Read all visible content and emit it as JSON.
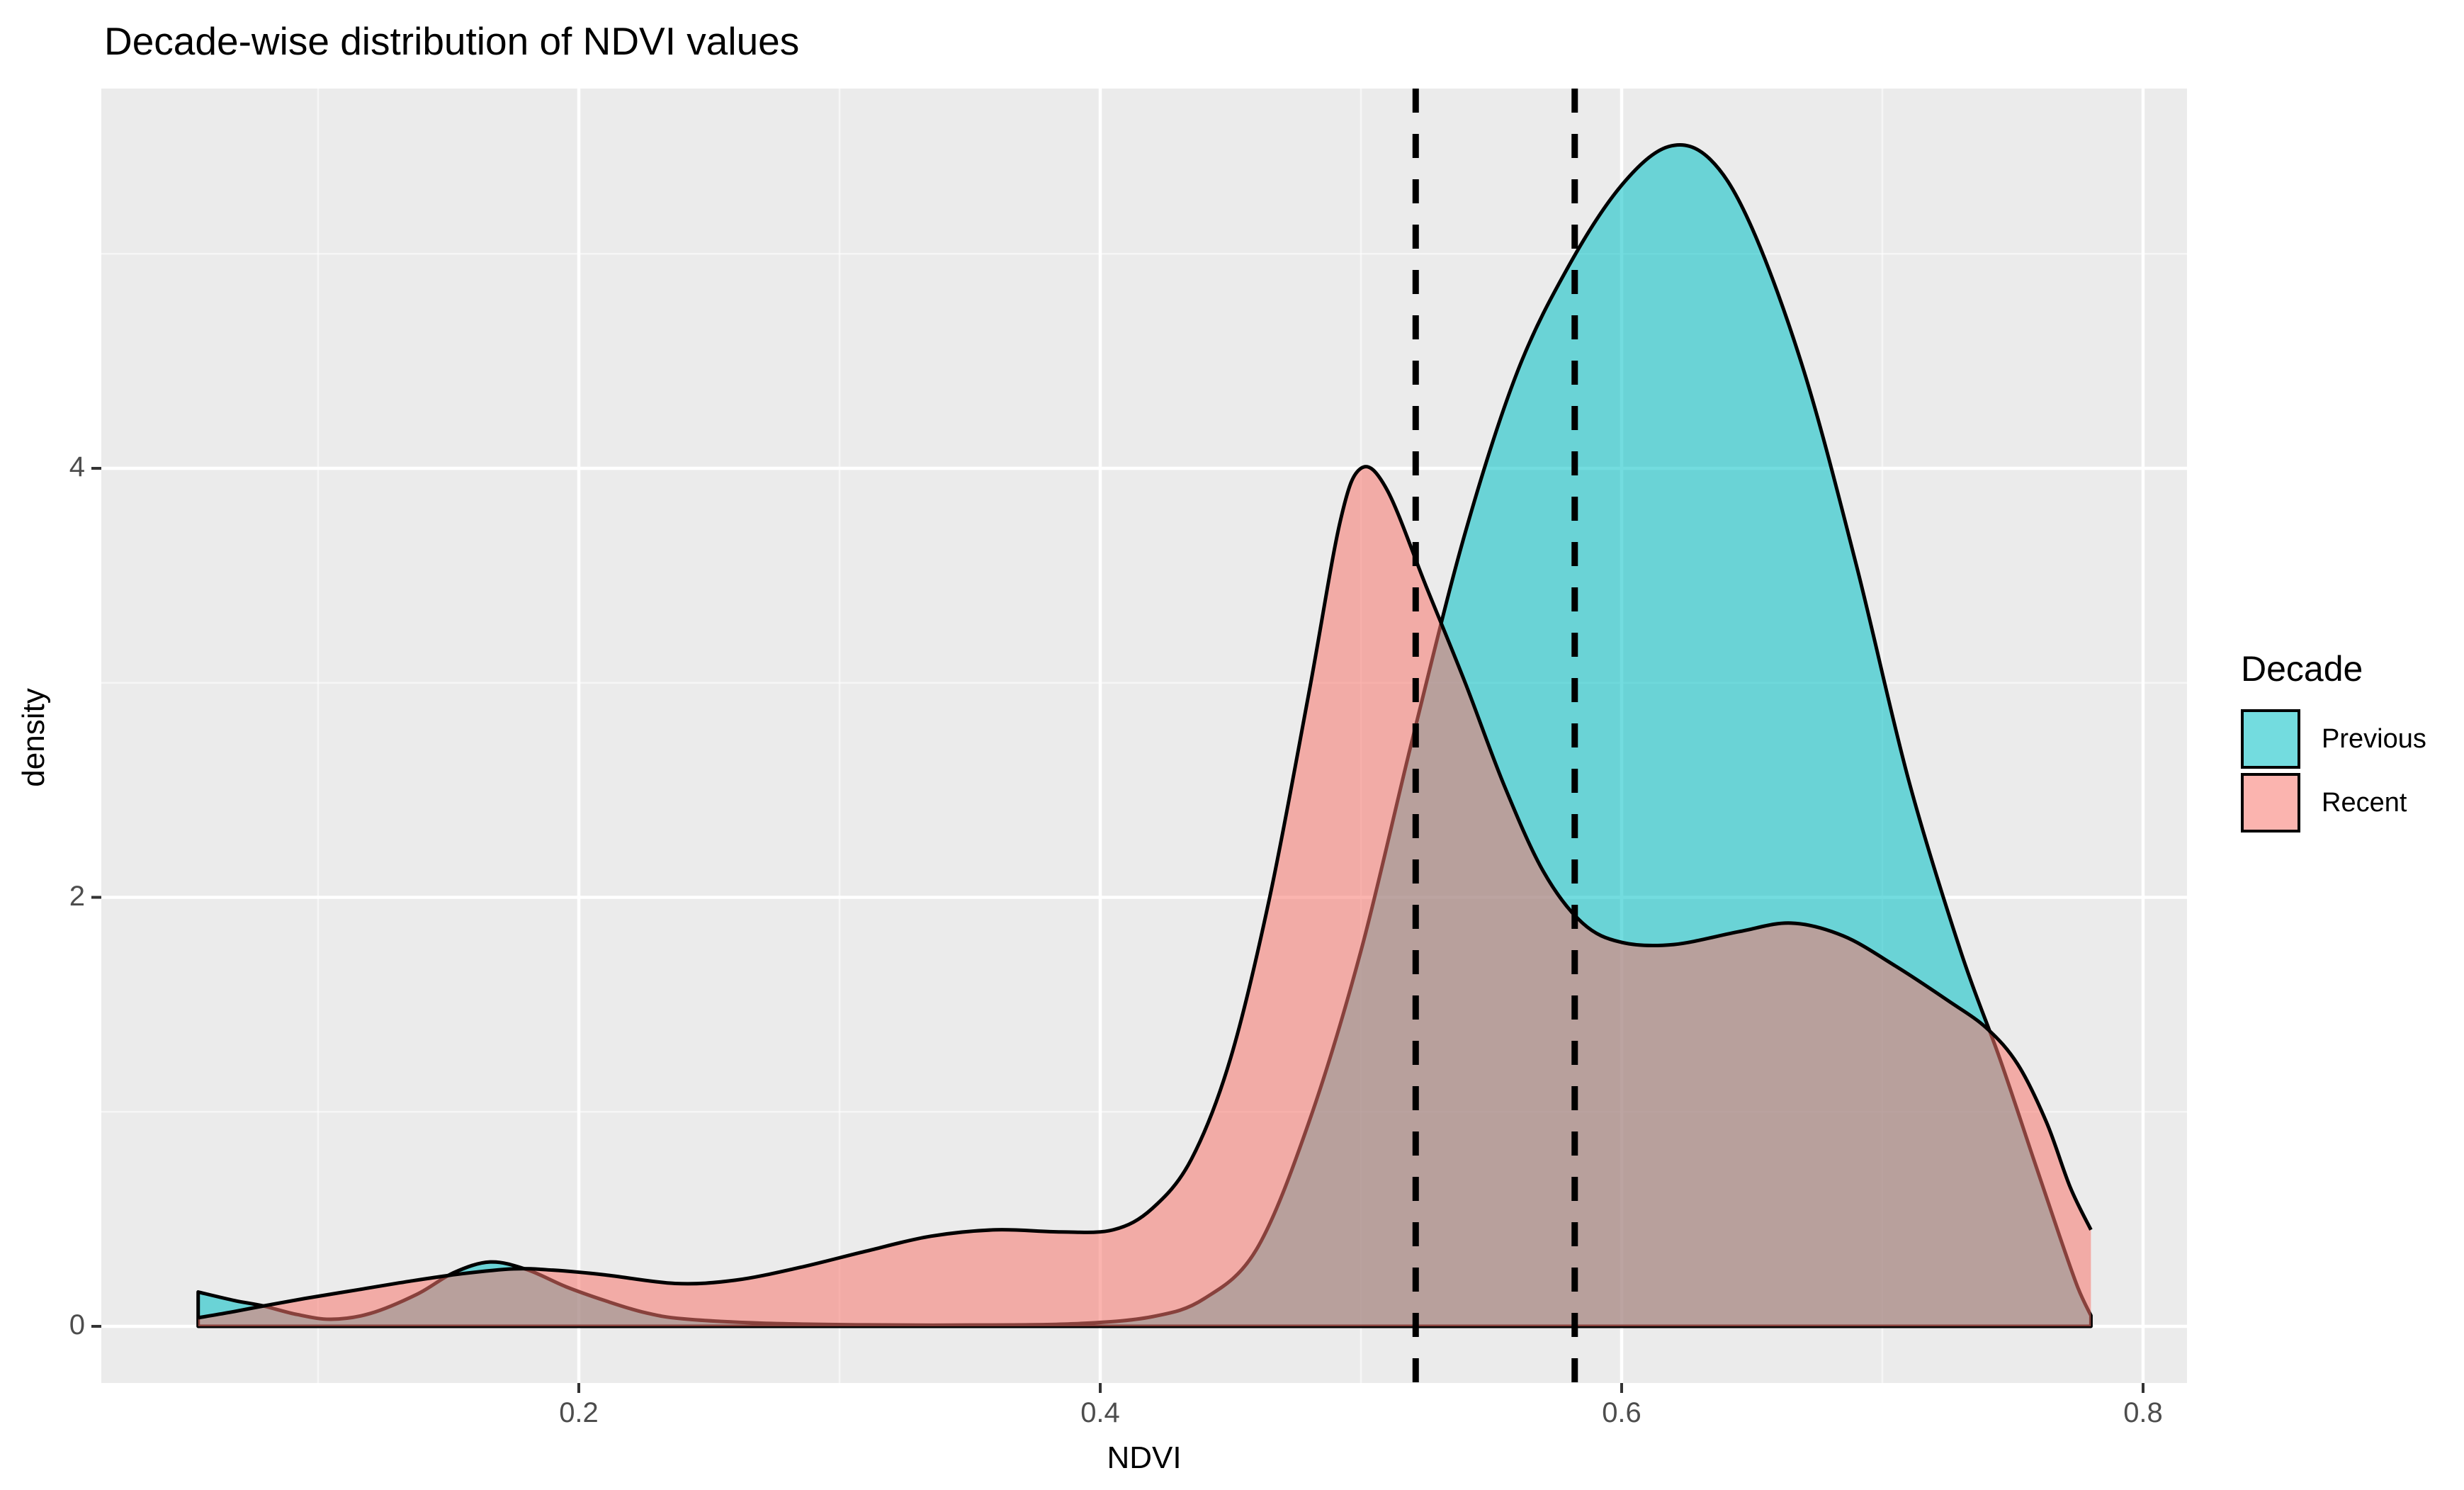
{
  "page": {
    "background": "#FFFFFF"
  },
  "chart_data": {
    "type": "area",
    "subtype": "density",
    "title": "Decade-wise distribution of NDVI values",
    "xlabel": "NDVI",
    "ylabel": "density",
    "x_ticks": [
      0.2,
      0.4,
      0.6,
      0.8
    ],
    "x_tick_labels": [
      "0.2",
      "0.4",
      "0.6",
      "0.8"
    ],
    "x_minor_ticks": [
      0.1,
      0.3,
      0.5,
      0.7
    ],
    "y_ticks": [
      0,
      2,
      4
    ],
    "y_tick_labels": [
      "0",
      "2",
      "4"
    ],
    "y_minor_ticks": [
      1,
      3,
      5
    ],
    "xlim": [
      0.017,
      0.817
    ],
    "ylim": [
      -0.26,
      5.77
    ],
    "grid": true,
    "panel_background": "#EBEBEB",
    "gridline_color": "#FFFFFF",
    "outline_color": "#000000",
    "fill_alpha": 0.55,
    "legend": {
      "position": "right",
      "title": "Decade",
      "entries": [
        {
          "label": "Previous",
          "color": "#00BFC4"
        },
        {
          "label": "Recent",
          "color": "#F8766D"
        }
      ]
    },
    "vlines": [
      {
        "x": 0.521,
        "style": "dashed",
        "color": "#000000"
      },
      {
        "x": 0.582,
        "style": "dashed",
        "color": "#000000"
      }
    ],
    "series": [
      {
        "name": "Previous",
        "color": "#00BFC4",
        "points": [
          [
            0.054,
            0.16
          ],
          [
            0.068,
            0.12
          ],
          [
            0.079,
            0.095
          ],
          [
            0.092,
            0.055
          ],
          [
            0.105,
            0.033
          ],
          [
            0.12,
            0.06
          ],
          [
            0.138,
            0.15
          ],
          [
            0.152,
            0.25
          ],
          [
            0.166,
            0.3
          ],
          [
            0.18,
            0.265
          ],
          [
            0.195,
            0.185
          ],
          [
            0.21,
            0.12
          ],
          [
            0.225,
            0.065
          ],
          [
            0.24,
            0.035
          ],
          [
            0.27,
            0.015
          ],
          [
            0.31,
            0.007
          ],
          [
            0.35,
            0.006
          ],
          [
            0.39,
            0.012
          ],
          [
            0.42,
            0.045
          ],
          [
            0.44,
            0.13
          ],
          [
            0.46,
            0.36
          ],
          [
            0.48,
            0.95
          ],
          [
            0.5,
            1.75
          ],
          [
            0.52,
            2.75
          ],
          [
            0.54,
            3.7
          ],
          [
            0.56,
            4.45
          ],
          [
            0.58,
            4.95
          ],
          [
            0.6,
            5.32
          ],
          [
            0.618,
            5.5
          ],
          [
            0.634,
            5.44
          ],
          [
            0.65,
            5.12
          ],
          [
            0.67,
            4.45
          ],
          [
            0.69,
            3.55
          ],
          [
            0.71,
            2.55
          ],
          [
            0.73,
            1.75
          ],
          [
            0.745,
            1.25
          ],
          [
            0.758,
            0.78
          ],
          [
            0.768,
            0.42
          ],
          [
            0.775,
            0.18
          ],
          [
            0.78,
            0.05
          ]
        ]
      },
      {
        "name": "Recent",
        "color": "#F8766D",
        "points": [
          [
            0.054,
            0.04
          ],
          [
            0.066,
            0.065
          ],
          [
            0.079,
            0.095
          ],
          [
            0.095,
            0.13
          ],
          [
            0.115,
            0.17
          ],
          [
            0.135,
            0.21
          ],
          [
            0.155,
            0.245
          ],
          [
            0.175,
            0.268
          ],
          [
            0.19,
            0.262
          ],
          [
            0.21,
            0.24
          ],
          [
            0.237,
            0.2
          ],
          [
            0.26,
            0.215
          ],
          [
            0.285,
            0.275
          ],
          [
            0.31,
            0.35
          ],
          [
            0.335,
            0.42
          ],
          [
            0.36,
            0.45
          ],
          [
            0.385,
            0.44
          ],
          [
            0.405,
            0.45
          ],
          [
            0.42,
            0.55
          ],
          [
            0.435,
            0.78
          ],
          [
            0.45,
            1.25
          ],
          [
            0.465,
            2.0
          ],
          [
            0.48,
            2.95
          ],
          [
            0.492,
            3.75
          ],
          [
            0.5,
            4.0
          ],
          [
            0.51,
            3.9
          ],
          [
            0.525,
            3.45
          ],
          [
            0.54,
            3.0
          ],
          [
            0.555,
            2.52
          ],
          [
            0.57,
            2.12
          ],
          [
            0.585,
            1.88
          ],
          [
            0.6,
            1.79
          ],
          [
            0.62,
            1.78
          ],
          [
            0.645,
            1.84
          ],
          [
            0.665,
            1.88
          ],
          [
            0.685,
            1.82
          ],
          [
            0.705,
            1.68
          ],
          [
            0.725,
            1.52
          ],
          [
            0.74,
            1.39
          ],
          [
            0.752,
            1.22
          ],
          [
            0.763,
            0.95
          ],
          [
            0.772,
            0.65
          ],
          [
            0.78,
            0.45
          ]
        ]
      }
    ]
  }
}
